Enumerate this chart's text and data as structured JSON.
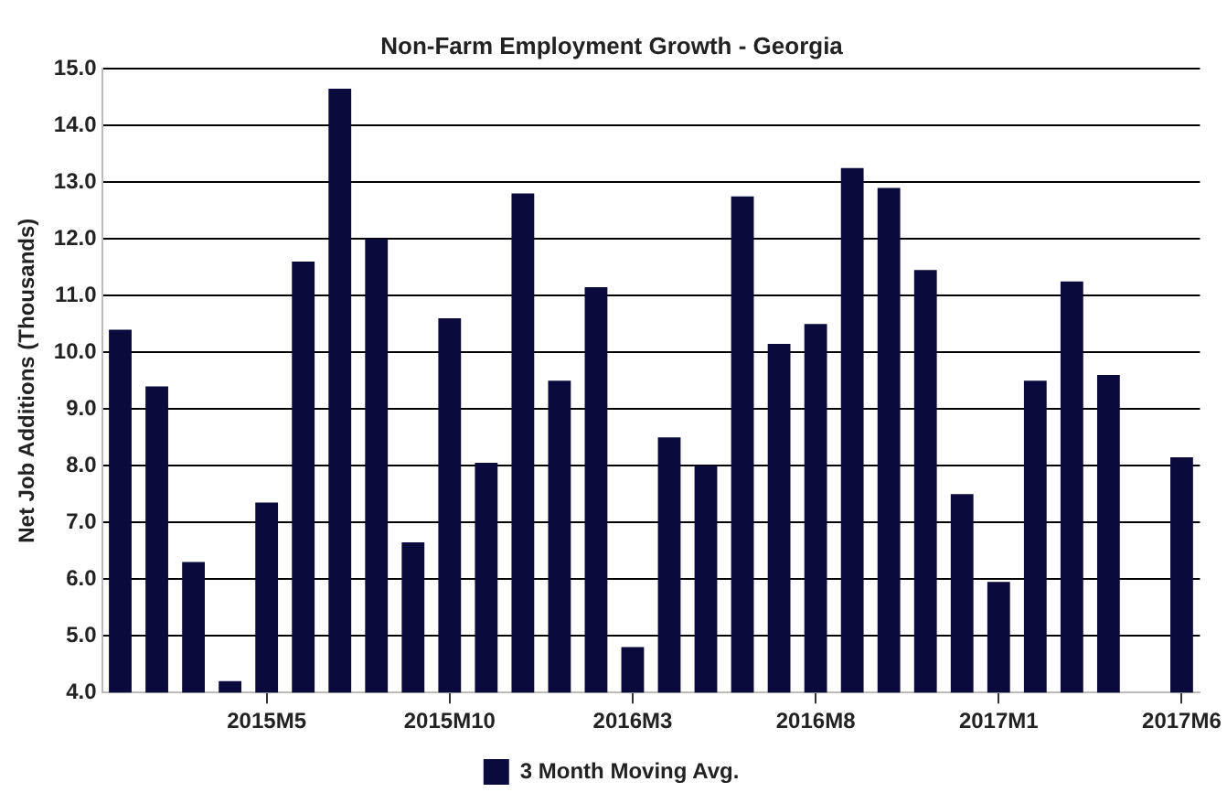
{
  "chart_data": {
    "type": "bar",
    "title": "Non-Farm Employment Growth - Georgia",
    "ylabel": "Net Job Additions (Thousands)",
    "categories": [
      null,
      null,
      null,
      null,
      "2015M5",
      null,
      null,
      null,
      null,
      "2015M10",
      null,
      null,
      null,
      null,
      "2016M3",
      null,
      null,
      null,
      null,
      "2016M8",
      null,
      null,
      null,
      null,
      "2017M1",
      null,
      null,
      null,
      null,
      "2017M6"
    ],
    "series": [
      {
        "name": "3 Month Moving Avg.",
        "color": "#0a0a3c",
        "values": [
          10.4,
          9.4,
          6.3,
          4.2,
          7.35,
          11.6,
          14.65,
          12.0,
          6.65,
          10.6,
          8.05,
          12.8,
          9.5,
          11.15,
          4.8,
          8.5,
          8.0,
          12.75,
          10.15,
          10.5,
          13.25,
          12.9,
          11.45,
          7.5,
          5.95,
          9.5,
          11.25,
          9.6,
          null,
          8.15
        ]
      }
    ],
    "ylim": [
      4,
      15
    ],
    "yticks": [
      {
        "value": 4,
        "label": "4.0"
      },
      {
        "value": 5,
        "label": "5.0"
      },
      {
        "value": 6,
        "label": "6.0"
      },
      {
        "value": 7,
        "label": "7.0"
      },
      {
        "value": 8,
        "label": "8.0"
      },
      {
        "value": 9,
        "label": "9.0"
      },
      {
        "value": 10,
        "label": "10.0"
      },
      {
        "value": 11,
        "label": "11.0"
      },
      {
        "value": 12,
        "label": "12.0"
      },
      {
        "value": 13,
        "label": "13.0"
      },
      {
        "value": 14,
        "label": "14.0"
      },
      {
        "value": 15,
        "label": "15.0"
      }
    ],
    "grid": "y",
    "legend": "bottom"
  }
}
